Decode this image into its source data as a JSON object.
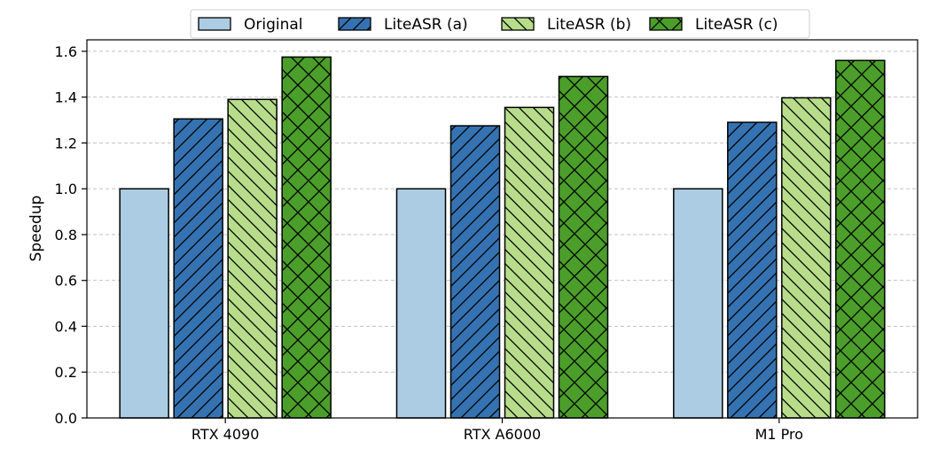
{
  "chart_data": {
    "type": "bar",
    "title": "",
    "xlabel": "",
    "ylabel": "Speedup",
    "ylim": [
      0,
      1.65
    ],
    "yticks": [
      "0.0",
      "0.2",
      "0.4",
      "0.6",
      "0.8",
      "1.0",
      "1.2",
      "1.4",
      "1.6"
    ],
    "grid": "horizontal dashed",
    "legend_position": "top",
    "categories": [
      "RTX 4090",
      "RTX A6000",
      "M1 Pro"
    ],
    "series": [
      {
        "name": "Original",
        "values": [
          1.0,
          1.0,
          1.0
        ],
        "color": "#abcce3",
        "hatch": "none"
      },
      {
        "name": "LiteASR (a)",
        "values": [
          1.305,
          1.275,
          1.29
        ],
        "color": "#3572b1",
        "hatch": "forward"
      },
      {
        "name": "LiteASR (b)",
        "values": [
          1.39,
          1.355,
          1.397
        ],
        "color": "#b7dd8b",
        "hatch": "backward"
      },
      {
        "name": "LiteASR (c)",
        "values": [
          1.575,
          1.49,
          1.56
        ],
        "color": "#4b9e2a",
        "hatch": "cross"
      }
    ]
  }
}
